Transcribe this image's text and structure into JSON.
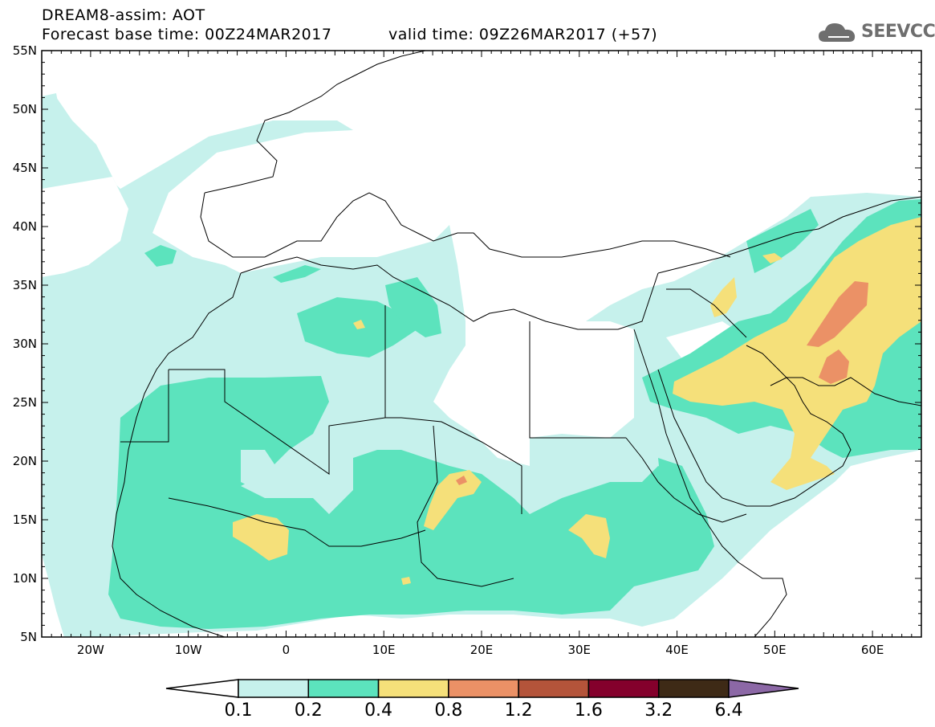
{
  "header": {
    "title": "DREAM8-assim: AOT",
    "base_time": "Forecast base time: 00Z24MAR2017",
    "valid_time": "valid time: 09Z26MAR2017 (+57)"
  },
  "logo": {
    "text": "SEEVCCC",
    "icon": "cloud-icon"
  },
  "map": {
    "lat_labels": [
      "55N",
      "50N",
      "45N",
      "40N",
      "35N",
      "30N",
      "25N",
      "20N",
      "15N",
      "10N",
      "5N"
    ],
    "lon_labels": [
      "20W",
      "10W",
      "0",
      "10E",
      "20E",
      "30E",
      "40E",
      "50E",
      "60E"
    ],
    "lat_values": [
      55,
      50,
      45,
      40,
      35,
      30,
      25,
      20,
      15,
      10,
      5
    ],
    "lon_values": [
      -20,
      -10,
      0,
      10,
      20,
      30,
      40,
      50,
      60
    ]
  },
  "colorbar": {
    "labels": [
      "0.1",
      "0.2",
      "0.4",
      "0.8",
      "1.2",
      "1.6",
      "3.2",
      "6.4"
    ],
    "colors": [
      "#ffffff",
      "#c6f1ec",
      "#5ce3bd",
      "#f5e07a",
      "#eb9166",
      "#b4543a",
      "#84002c",
      "#3e2a16",
      "#8c68a6"
    ]
  },
  "legend_colors": {
    "light_cyan": "#c6f1ec",
    "green": "#5ce3bd",
    "yellow": "#f5e07a",
    "orange": "#eb9166",
    "red_brown": "#b4543a",
    "dark_red": "#84002c",
    "dark_brown": "#3e2a16",
    "purple": "#8c68a6"
  }
}
